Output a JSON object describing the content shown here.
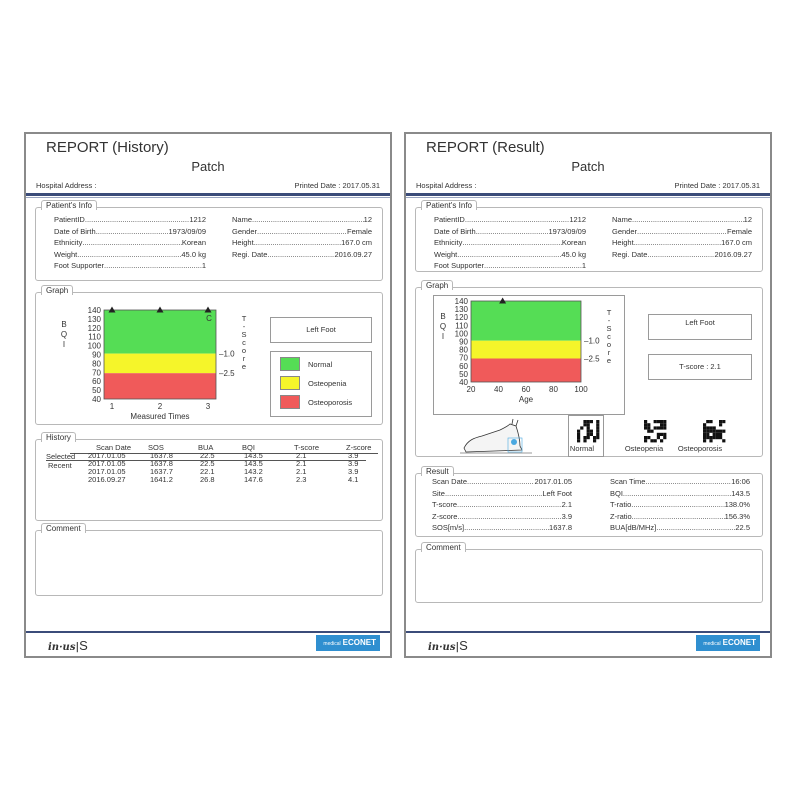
{
  "left": {
    "title": "REPORT (History)",
    "patient_name": "Patch",
    "hospital_address_label": "Hospital Address :",
    "printed_date": "Printed Date : 2017.05.31",
    "patients_info_label": "Patient's Info",
    "info_left": [
      {
        "label": "PatientID",
        "value": "1212"
      },
      {
        "label": "Date of Birth",
        "value": "1973/09/09"
      },
      {
        "label": "Ethnicity",
        "value": "Korean"
      },
      {
        "label": "Weight",
        "value": "45.0 kg"
      },
      {
        "label": "Foot Supporter",
        "value": "1"
      }
    ],
    "info_right": [
      {
        "label": "Name",
        "value": "12"
      },
      {
        "label": "Gender",
        "value": "Female"
      },
      {
        "label": "Height",
        "value": "167.0 cm"
      },
      {
        "label": "Regi. Date",
        "value": "2016.09.27"
      }
    ],
    "graph_label": "Graph",
    "foot_box": "Left Foot",
    "legend": [
      {
        "label": "Normal",
        "color": "#55dd55"
      },
      {
        "label": "Osteopenia",
        "color": "#f5f52a"
      },
      {
        "label": "Osteoporosis",
        "color": "#f05a5a"
      }
    ],
    "history_label": "History",
    "history_headers": [
      "Scan Date",
      "SOS",
      "BUA",
      "BQI",
      "T-score",
      "Z-score"
    ],
    "history_row_labels": [
      "Selected",
      "Recent"
    ],
    "history_rows": [
      [
        "2017.01.05",
        "1637.8",
        "22.5",
        "143.5",
        "2.1",
        "3.9"
      ],
      [
        "2017.01.05",
        "1637.8",
        "22.5",
        "143.5",
        "2.1",
        "3.9"
      ],
      [
        "2017.01.05",
        "1637.7",
        "22.1",
        "143.2",
        "2.1",
        "3.9"
      ],
      [
        "2016.09.27",
        "1641.2",
        "26.8",
        "147.6",
        "2.3",
        "4.1"
      ]
    ],
    "comment_label": "Comment"
  },
  "right": {
    "title": "REPORT (Result)",
    "patient_name": "Patch",
    "hospital_address_label": "Hospital Address :",
    "printed_date": "Printed Date : 2017.05.31",
    "patients_info_label": "Patient's Info",
    "info_left": [
      {
        "label": "PatientID",
        "value": "1212"
      },
      {
        "label": "Date of Birth",
        "value": "1973/09/09"
      },
      {
        "label": "Ethnicity",
        "value": "Korean"
      },
      {
        "label": "Weight",
        "value": "45.0 kg"
      },
      {
        "label": "Foot Supporter",
        "value": "1"
      }
    ],
    "info_right": [
      {
        "label": "Name",
        "value": "12"
      },
      {
        "label": "Gender",
        "value": "Female"
      },
      {
        "label": "Height",
        "value": "167.0 cm"
      },
      {
        "label": "Regi. Date",
        "value": "2016.09.27"
      }
    ],
    "graph_label": "Graph",
    "foot_box": "Left Foot",
    "tscore_box": "T-score : 2.1",
    "image_labels": [
      "Normal",
      "Osteopenia",
      "Osteoporosis"
    ],
    "result_label": "Result",
    "result_left": [
      {
        "label": "Scan Date",
        "value": "2017.01.05"
      },
      {
        "label": "Site",
        "value": "Left Foot"
      },
      {
        "label": "T-score",
        "value": "2.1"
      },
      {
        "label": "Z-score",
        "value": "3.9"
      },
      {
        "label": "SOS[m/s]",
        "value": "1637.8"
      }
    ],
    "result_right": [
      {
        "label": "Scan Time",
        "value": "16:06"
      },
      {
        "label": "BQI",
        "value": "143.5"
      },
      {
        "label": "T-ratio",
        "value": "138.0%"
      },
      {
        "label": "Z-ratio",
        "value": "156.3%"
      },
      {
        "label": "BUA[dB/MHz]",
        "value": "22.5"
      }
    ],
    "comment_label": "Comment"
  },
  "chart_data": [
    {
      "type": "scatter",
      "ylabel": "BQI",
      "y2label": "T-Score",
      "xlabel": "Measured Times",
      "x_ticks": [
        "1",
        "2",
        "3"
      ],
      "y_ticks": [
        "140",
        "130",
        "120",
        "110",
        "100",
        "90",
        "80",
        "70",
        "60",
        "50",
        "40"
      ],
      "ylim": [
        40,
        140
      ],
      "zones": [
        {
          "name": "Normal",
          "from": 91,
          "to": 140,
          "color": "#55dd55"
        },
        {
          "name": "Osteopenia",
          "from": 69,
          "to": 91,
          "color": "#f5f52a"
        },
        {
          "name": "Osteoporosis",
          "from": 40,
          "to": 69,
          "color": "#f05a5a"
        }
      ],
      "t_score_ticks": [
        {
          "label": "-1.0",
          "y": 91
        },
        {
          "label": "-2.5",
          "y": 69
        }
      ],
      "points": [
        {
          "x": 1,
          "y": 140
        },
        {
          "x": 2,
          "y": 140
        },
        {
          "x": 3,
          "y": 140
        }
      ],
      "point_label": "C"
    },
    {
      "type": "scatter",
      "ylabel": "BQI",
      "y2label": "T-Score",
      "xlabel": "Age",
      "x_ticks": [
        "20",
        "40",
        "60",
        "80",
        "100"
      ],
      "xlim": [
        20,
        100
      ],
      "y_ticks": [
        "140",
        "130",
        "120",
        "110",
        "100",
        "90",
        "80",
        "70",
        "60",
        "50",
        "40"
      ],
      "ylim": [
        40,
        140
      ],
      "zones": [
        {
          "name": "Normal",
          "from": 91,
          "to": 140,
          "color": "#55dd55"
        },
        {
          "name": "Osteopenia",
          "from": 69,
          "to": 91,
          "color": "#f5f52a"
        },
        {
          "name": "Osteoporosis",
          "from": 40,
          "to": 69,
          "color": "#f05a5a"
        }
      ],
      "t_score_ticks": [
        {
          "label": "-1.0",
          "y": 91
        },
        {
          "label": "-2.5",
          "y": 69
        }
      ],
      "points": [
        {
          "x": 43,
          "y": 140
        }
      ]
    }
  ]
}
